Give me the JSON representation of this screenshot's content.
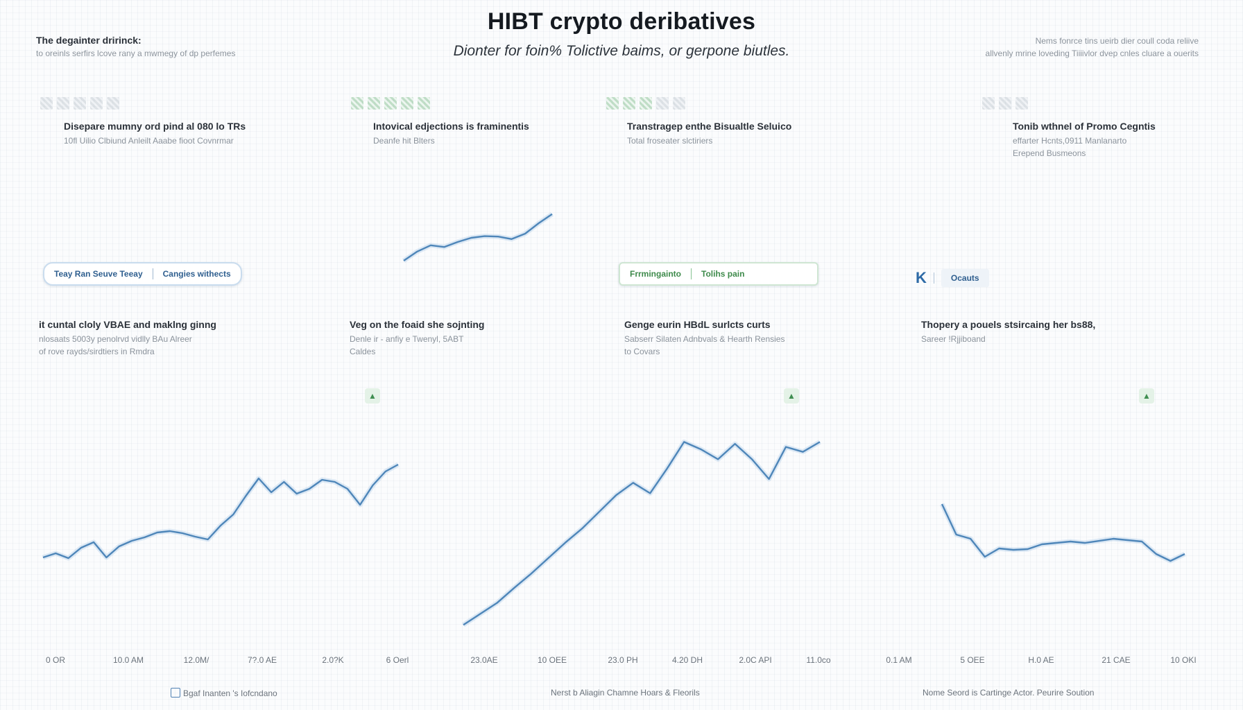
{
  "header": {
    "title": "HIBT crypto deribatives",
    "subtitle": "Dionter for foin% Tolictive baims, or gerpone biutles."
  },
  "corner_left": {
    "title": "The degainter dririnck:",
    "sub": "to oreinls serfirs lcove rany a mwmegy of dp perfemes"
  },
  "corner_right": {
    "line1": "Nems fonrce tins ueirb dier coull coda reliive",
    "line2": "allvenly mrine loveding Tiiiivlor dvep cnles cluare a ouerits"
  },
  "top_cards": [
    {
      "title": "Disepare mumny ord pind al 080 lo TRs",
      "sub": [
        "10fl Uilio Clbiund Anleilt Aaabe fioot Covnrmar"
      ]
    },
    {
      "title": "Intovical edjections is framinentis",
      "sub": [
        "Deanfe hit Blters"
      ]
    },
    {
      "title": "Transtragep enthe Bisualtle Seluico",
      "sub": [
        "Total froseater slctiriers"
      ]
    },
    {
      "title": "Tonib wthnel of Promo Cegntis",
      "sub": [
        "effarter Hcnts,0911 Manlanarto",
        "Erepend Busmeons"
      ]
    }
  ],
  "controls": {
    "blue_pill": [
      "Teay Ran Seuve Teeay",
      "Cangies withects"
    ],
    "green_pill": [
      "Frrmingainto",
      "Tolihs pain"
    ],
    "k_letter": "K",
    "k_label": "Ocauts"
  },
  "mid_cards": [
    {
      "title": "it cuntal cloly VBAE and maklng ginng",
      "sub": [
        "nlosaats 5003y penolrvd vidlly BAu Alreer",
        "of rove rayds/sirdtiers in Rmdra"
      ]
    },
    {
      "title": "Veg on the foaid she sojnting",
      "sub": [
        "Denle ir - anfiy e Twenyl, 5ABT",
        "Caldes"
      ]
    },
    {
      "title": "Genge eurin HBdL surlcts curts",
      "sub": [
        "Sabserr Silaten Adnbvals & Hearth Rensies",
        "to Covars"
      ]
    },
    {
      "title": "Thopery a pouels stsircaing her bs88,",
      "sub": [
        "Sareer !Rjjiboand"
      ]
    }
  ],
  "footers": [
    {
      "text": "Bgaf Inanten 's Iofcndano"
    },
    {
      "text": "Nerst b Aliagin Chamne Hoars & Fleorils"
    },
    {
      "text": "Nome Seord is Cartinge Actor. Peurire Soution"
    }
  ],
  "chart_data": [
    {
      "type": "line",
      "title": "",
      "x_ticks": [
        "0 OR",
        "10.0 AM",
        "12.0M/",
        "7?.0 AE",
        "2.0?K",
        "6 Oerl"
      ],
      "series": [
        {
          "values": [
            96,
            102,
            95,
            110,
            118,
            96,
            112,
            120,
            125,
            132,
            134,
            131,
            126,
            122,
            142,
            158,
            185,
            210,
            190,
            205,
            188,
            195,
            208,
            205,
            195,
            172,
            200,
            220,
            230
          ]
        }
      ],
      "ylim": [
        0,
        400
      ]
    },
    {
      "type": "line",
      "title": "",
      "x_ticks": [],
      "series": [
        {
          "values": [
            100,
            122,
            137,
            133,
            145,
            155,
            159,
            158,
            152,
            165,
            190,
            212
          ]
        }
      ],
      "ylim": [
        60,
        240
      ]
    },
    {
      "type": "line",
      "title": "",
      "x_ticks": [
        "23.0AE",
        "10 OEE",
        "23.0 PH",
        "4.20 DH",
        "2.0C API",
        "11.0co"
      ],
      "series": [
        {
          "values": [
            12,
            30,
            48,
            72,
            95,
            120,
            145,
            168,
            195,
            222,
            242,
            225,
            265,
            308,
            296,
            280,
            305,
            280,
            248,
            300,
            292,
            308
          ]
        }
      ],
      "ylim": [
        0,
        350
      ]
    },
    {
      "type": "line",
      "title": "",
      "x_ticks": [
        "0.1 AM",
        "5 OEE",
        "H.0 AE",
        "21 CAE",
        "10 OKI"
      ],
      "series": [
        {
          "values": [
            128,
            84,
            78,
            52,
            64,
            62,
            63,
            70,
            72,
            74,
            72,
            75,
            78,
            76,
            74,
            56,
            46,
            56
          ]
        }
      ],
      "ylim": [
        0,
        180
      ]
    }
  ]
}
